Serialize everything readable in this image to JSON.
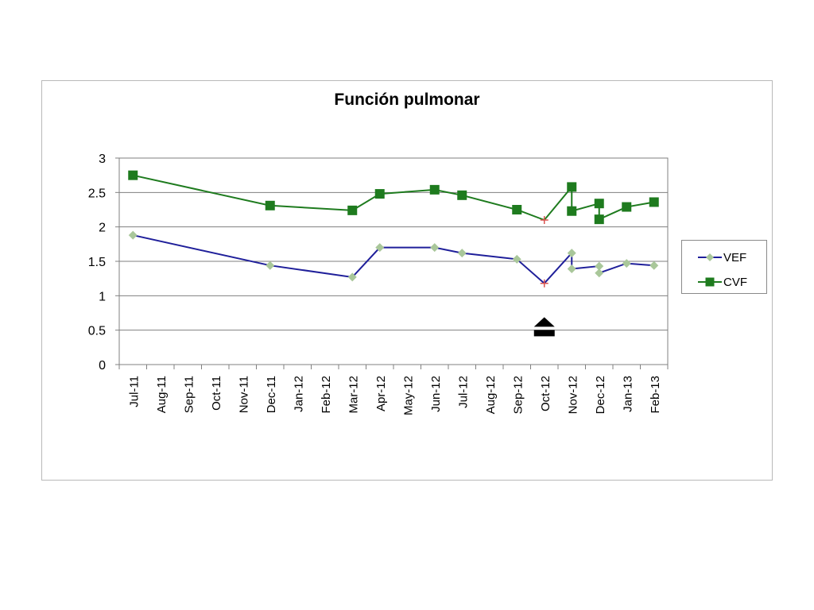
{
  "chart_data": {
    "type": "line",
    "title": "Función pulmonar",
    "xlabel": "",
    "ylabel": "",
    "categories": [
      "Jul-11",
      "Aug-11",
      "Sep-11",
      "Oct-11",
      "Nov-11",
      "Dec-11",
      "Jan-12",
      "Feb-12",
      "Mar-12",
      "Apr-12",
      "May-12",
      "Jun-12",
      "Jul-12",
      "Aug-12",
      "Sep-12",
      "Oct-12",
      "Nov-12",
      "Dec-12",
      "Jan-13",
      "Feb-13"
    ],
    "ylim": [
      0,
      3
    ],
    "yticks": [
      "0",
      "0.5",
      "1",
      "1.5",
      "2",
      "2.5",
      "3"
    ],
    "grid": true,
    "legend_position": "right",
    "series": [
      {
        "name": "VEF",
        "color": "#1f1f9a",
        "marker": "diamond",
        "marker_color": "#a9c79a",
        "points": [
          {
            "x": "Jul-11",
            "y": 1.88
          },
          {
            "x": "Dec-11",
            "y": 1.44
          },
          {
            "x": "Mar-12",
            "y": 1.27
          },
          {
            "x": "Apr-12",
            "y": 1.7
          },
          {
            "x": "Jun-12",
            "y": 1.7
          },
          {
            "x": "Jul-12",
            "y": 1.62
          },
          {
            "x": "Sep-12",
            "y": 1.53
          },
          {
            "x": "Oct-12",
            "y": 1.18,
            "marker": "cross"
          },
          {
            "x": "Nov-12",
            "y": 1.62
          },
          {
            "x": "Nov-12",
            "y": 1.39
          },
          {
            "x": "Dec-12",
            "y": 1.43
          },
          {
            "x": "Dec-12",
            "y": 1.33
          },
          {
            "x": "Jan-13",
            "y": 1.47
          },
          {
            "x": "Feb-13",
            "y": 1.44
          }
        ]
      },
      {
        "name": "CVF",
        "color": "#1e7b1e",
        "marker": "square",
        "marker_color": "#1e7b1e",
        "points": [
          {
            "x": "Jul-11",
            "y": 2.75
          },
          {
            "x": "Dec-11",
            "y": 2.31
          },
          {
            "x": "Mar-12",
            "y": 2.24
          },
          {
            "x": "Apr-12",
            "y": 2.48
          },
          {
            "x": "Jun-12",
            "y": 2.54
          },
          {
            "x": "Jul-12",
            "y": 2.46
          },
          {
            "x": "Sep-12",
            "y": 2.25
          },
          {
            "x": "Oct-12",
            "y": 2.1,
            "marker": "cross"
          },
          {
            "x": "Nov-12",
            "y": 2.58
          },
          {
            "x": "Nov-12",
            "y": 2.23
          },
          {
            "x": "Dec-12",
            "y": 2.34
          },
          {
            "x": "Dec-12",
            "y": 2.11
          },
          {
            "x": "Jan-13",
            "y": 2.29
          },
          {
            "x": "Feb-13",
            "y": 2.36
          }
        ]
      }
    ],
    "annotations": [
      {
        "type": "eject-icon",
        "x": "Oct-12",
        "y": 0.63
      }
    ]
  }
}
